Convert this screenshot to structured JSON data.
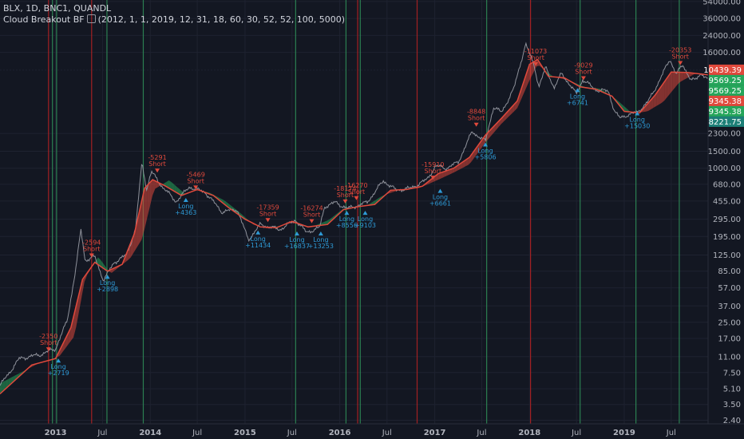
{
  "header": {
    "symbol_line": "BLX, 1D, BNC1, QUANDL",
    "indicator_name": "Cloud Breakout BF",
    "indicator_params": "(2012, 1, 1, 2019, 12, 31, 18, 60, 30, 52, 52, 100, 5000)"
  },
  "colors": {
    "background": "#131722",
    "grid": "#1e2230",
    "price": "#9598a1",
    "fast_line": "#e0493c",
    "cloud_bull": "#26a65b",
    "cloud_bear": "#e0493c",
    "vline_green": "#2e8b57",
    "vline_red": "#b22222",
    "short_label": "#e0493c",
    "long_label": "#2e9ad6",
    "axis_text": "#b2b5be"
  },
  "chart_data": {
    "type": "line",
    "title": "",
    "y_scale": "log",
    "ylim": [
      2.2,
      56000
    ],
    "x_range": [
      "2012-06-01",
      "2019-11-20"
    ],
    "y_ticks": [
      "54000.00",
      "36000.00",
      "24000.00",
      "16000.00",
      "2300.00",
      "1500.00",
      "1000.00",
      "680.00",
      "455.00",
      "295.00",
      "195.00",
      "125.00",
      "85.00",
      "57.00",
      "37.00",
      "25.00",
      "17.00",
      "11.00",
      "7.50",
      "5.10",
      "3.50",
      "2.40"
    ],
    "x_ticks": [
      "2013",
      "Jul",
      "2014",
      "Jul",
      "2015",
      "Jul",
      "2016",
      "Jul",
      "2017",
      "Jul",
      "2018",
      "Jul",
      "2019",
      "Jul"
    ],
    "price_series": {
      "name": "BLX",
      "x": [
        "2012-06-01",
        "2012-08-15",
        "2012-11-01",
        "2013-01-01",
        "2013-02-15",
        "2013-03-20",
        "2013-04-09",
        "2013-04-25",
        "2013-06-01",
        "2013-07-05",
        "2013-08-15",
        "2013-10-01",
        "2013-11-05",
        "2013-11-30",
        "2013-12-18",
        "2014-01-05",
        "2014-02-15",
        "2014-04-10",
        "2014-06-01",
        "2014-08-01",
        "2014-10-05",
        "2014-12-01",
        "2015-01-14",
        "2015-03-01",
        "2015-05-15",
        "2015-07-15",
        "2015-08-25",
        "2015-10-15",
        "2015-11-04",
        "2015-12-15",
        "2016-02-01",
        "2016-04-15",
        "2016-06-17",
        "2016-08-05",
        "2016-10-01",
        "2016-12-01",
        "2017-01-04",
        "2017-02-15",
        "2017-04-01",
        "2017-05-25",
        "2017-07-15",
        "2017-08-15",
        "2017-09-15",
        "2017-11-01",
        "2017-12-17",
        "2018-01-20",
        "2018-02-06",
        "2018-03-05",
        "2018-04-06",
        "2018-05-05",
        "2018-06-30",
        "2018-07-25",
        "2018-09-15",
        "2018-11-01",
        "2018-11-25",
        "2018-12-15",
        "2019-01-15",
        "2019-02-20",
        "2019-04-05",
        "2019-05-15",
        "2019-06-26",
        "2019-07-20",
        "2019-08-15",
        "2019-09-15",
        "2019-10-01",
        "2019-10-26",
        "2019-11-20"
      ],
      "y": [
        5.5,
        10.5,
        11.5,
        13.3,
        26,
        90,
        230,
        110,
        120,
        68,
        105,
        125,
        230,
        1150,
        600,
        920,
        650,
        450,
        640,
        560,
        350,
        375,
        180,
        260,
        230,
        290,
        215,
        240,
        400,
        440,
        380,
        440,
        740,
        590,
        620,
        760,
        1050,
        1000,
        1150,
        2400,
        1900,
        4300,
        3800,
        6600,
        19500,
        11500,
        7000,
        11200,
        6800,
        9700,
        5900,
        8300,
        6500,
        6300,
        3900,
        3300,
        3600,
        3800,
        5000,
        8000,
        13600,
        9500,
        11800,
        8300,
        8200,
        9800,
        8221.75
      ]
    },
    "cloud_series": {
      "name": "cloud",
      "x": [
        "2012-06-01",
        "2012-11-01",
        "2013-01-15",
        "2013-03-15",
        "2013-04-25",
        "2013-06-15",
        "2013-08-01",
        "2013-10-15",
        "2013-12-01",
        "2014-01-15",
        "2014-03-15",
        "2014-05-15",
        "2014-07-01",
        "2014-08-15",
        "2014-10-15",
        "2014-12-15",
        "2015-02-01",
        "2015-04-01",
        "2015-07-01",
        "2015-09-15",
        "2015-11-20",
        "2016-01-15",
        "2016-04-15",
        "2016-06-15",
        "2016-08-15",
        "2016-11-01",
        "2017-01-15",
        "2017-03-15",
        "2017-05-15",
        "2017-07-15",
        "2017-09-15",
        "2017-11-15",
        "2018-01-01",
        "2018-02-01",
        "2018-04-01",
        "2018-06-01",
        "2018-08-01",
        "2018-10-01",
        "2018-12-01",
        "2019-02-01",
        "2019-04-01",
        "2019-06-01",
        "2019-08-01",
        "2019-10-01",
        "2019-11-20"
      ],
      "y": [
        5.8,
        9.5,
        11,
        18,
        72,
        120,
        80,
        115,
        185,
        600,
        750,
        540,
        590,
        560,
        460,
        340,
        260,
        235,
        270,
        245,
        290,
        380,
        410,
        520,
        590,
        620,
        760,
        900,
        1100,
        1850,
        2900,
        4200,
        8200,
        12000,
        9000,
        8200,
        7000,
        6700,
        5200,
        3700,
        3900,
        4900,
        7800,
        9600,
        9569.25
      ]
    },
    "fast_series": {
      "name": "fast",
      "x": [
        "2012-06-01",
        "2012-10-01",
        "2013-01-01",
        "2013-03-01",
        "2013-04-15",
        "2013-06-01",
        "2013-07-20",
        "2013-09-15",
        "2013-11-01",
        "2013-12-10",
        "2014-01-10",
        "2014-03-01",
        "2014-05-01",
        "2014-07-01",
        "2014-09-01",
        "2014-11-01",
        "2015-01-01",
        "2015-03-01",
        "2015-05-01",
        "2015-07-01",
        "2015-09-01",
        "2015-11-15",
        "2016-01-15",
        "2016-03-15",
        "2016-05-15",
        "2016-07-15",
        "2016-09-15",
        "2016-11-15",
        "2017-01-15",
        "2017-03-15",
        "2017-05-15",
        "2017-07-15",
        "2017-09-15",
        "2017-11-15",
        "2018-01-01",
        "2018-02-01",
        "2018-03-15",
        "2018-05-15",
        "2018-07-15",
        "2018-09-15",
        "2018-11-15",
        "2019-01-01",
        "2019-03-01",
        "2019-05-01",
        "2019-07-01",
        "2019-09-01",
        "2019-11-20"
      ],
      "y": [
        4.5,
        9,
        10.5,
        22,
        70,
        105,
        85,
        100,
        210,
        620,
        760,
        650,
        520,
        600,
        520,
        385,
        295,
        245,
        240,
        280,
        245,
        260,
        370,
        400,
        420,
        590,
        600,
        650,
        880,
        1000,
        1300,
        2200,
        3300,
        5000,
        12000,
        13500,
        9000,
        8700,
        7000,
        6600,
        5600,
        3900,
        3750,
        5800,
        10000,
        9900,
        9345.38
      ]
    },
    "price_labels": [
      {
        "value": "10439.39",
        "color": "#e0493c"
      },
      {
        "value": "9569.25",
        "color": "#26a65b"
      },
      {
        "value": "9569.25",
        "color": "#26a65b"
      },
      {
        "value": "9345.38",
        "color": "#e0493c"
      },
      {
        "value": "9345.38",
        "color": "#26a65b"
      },
      {
        "value": "8221.75",
        "color": "#1c7f77"
      }
    ],
    "annotations": [
      {
        "type": "short",
        "pct": "-2350",
        "side": "Short",
        "x": "2012-12-05",
        "y": 12.5
      },
      {
        "type": "long",
        "pct": "+2719",
        "side": "Long",
        "x": "2013-01-12",
        "y": 10.5
      },
      {
        "type": "short",
        "pct": "-2594",
        "side": "Short",
        "x": "2013-05-20",
        "y": 118
      },
      {
        "type": "long",
        "pct": "+2898",
        "side": "Long",
        "x": "2013-07-20",
        "y": 78
      },
      {
        "type": "short",
        "pct": "-5291",
        "side": "Short",
        "x": "2014-01-28",
        "y": 900
      },
      {
        "type": "short",
        "pct": "-5469",
        "side": "Short",
        "x": "2014-06-25",
        "y": 600
      },
      {
        "type": "long",
        "pct": "+4363",
        "side": "Long",
        "x": "2014-05-18",
        "y": 490
      },
      {
        "type": "short",
        "pct": "-17359",
        "side": "Short",
        "x": "2015-03-30",
        "y": 275
      },
      {
        "type": "long",
        "pct": "+11434",
        "side": "Long",
        "x": "2015-02-20",
        "y": 225
      },
      {
        "type": "short",
        "pct": "-16274",
        "side": "Short",
        "x": "2015-09-15",
        "y": 268
      },
      {
        "type": "long",
        "pct": "+16837",
        "side": "Long",
        "x": "2015-07-20",
        "y": 220
      },
      {
        "type": "long",
        "pct": "+13253",
        "side": "Long",
        "x": "2015-10-20",
        "y": 220
      },
      {
        "type": "short",
        "pct": "-18174",
        "side": "Short",
        "x": "2016-01-22",
        "y": 430
      },
      {
        "type": "short",
        "pct": "-16270",
        "side": "Short",
        "x": "2016-03-05",
        "y": 465
      },
      {
        "type": "long",
        "pct": "+8556",
        "side": "Long",
        "x": "2016-01-28",
        "y": 360
      },
      {
        "type": "long",
        "pct": "+9103",
        "side": "Long",
        "x": "2016-04-08",
        "y": 360
      },
      {
        "type": "short",
        "pct": "-15910",
        "side": "Short",
        "x": "2016-12-25",
        "y": 760
      },
      {
        "type": "long",
        "pct": "+6661",
        "side": "Long",
        "x": "2017-01-22",
        "y": 610
      },
      {
        "type": "short",
        "pct": "-8848",
        "side": "Short",
        "x": "2017-06-10",
        "y": 2700
      },
      {
        "type": "long",
        "pct": "+5806",
        "side": "Long",
        "x": "2017-07-15",
        "y": 1850
      },
      {
        "type": "short",
        "pct": "-11073",
        "side": "Short",
        "x": "2018-01-25",
        "y": 11500
      },
      {
        "type": "short",
        "pct": "-9029",
        "side": "Short",
        "x": "2018-07-28",
        "y": 8200
      },
      {
        "type": "long",
        "pct": "+6741",
        "side": "Long",
        "x": "2018-07-05",
        "y": 6800
      },
      {
        "type": "long",
        "pct": "+15030",
        "side": "Long",
        "x": "2019-02-20",
        "y": 3900
      },
      {
        "type": "short",
        "pct": "-20353",
        "side": "Short",
        "x": "2019-08-05",
        "y": 11800
      }
    ],
    "vlines": [
      {
        "x": "2012-12-05",
        "color": "red"
      },
      {
        "x": "2012-12-20",
        "color": "green"
      },
      {
        "x": "2013-01-05",
        "color": "green"
      },
      {
        "x": "2013-05-20",
        "color": "red"
      },
      {
        "x": "2013-07-18",
        "color": "green"
      },
      {
        "x": "2013-12-05",
        "color": "green"
      },
      {
        "x": "2015-07-15",
        "color": "green"
      },
      {
        "x": "2016-01-25",
        "color": "green"
      },
      {
        "x": "2016-03-10",
        "color": "red"
      },
      {
        "x": "2016-03-20",
        "color": "green"
      },
      {
        "x": "2016-10-25",
        "color": "red"
      },
      {
        "x": "2017-07-20",
        "color": "green"
      },
      {
        "x": "2018-01-05",
        "color": "red"
      },
      {
        "x": "2018-07-15",
        "color": "green"
      },
      {
        "x": "2019-02-15",
        "color": "green"
      },
      {
        "x": "2019-08-01",
        "color": "green"
      }
    ]
  }
}
